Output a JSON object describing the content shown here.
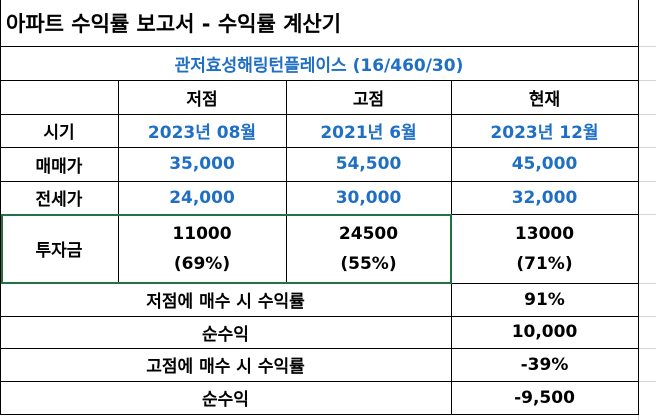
{
  "title": "아파트 수익률 보고서 - 수익률 계산기",
  "property": "관저효성해링턴플레이스 (16/460/30)",
  "headers": {
    "low": "저점",
    "high": "고점",
    "current": "현재"
  },
  "rows": {
    "period": {
      "label": "시기",
      "low": "2023년 08월",
      "high": "2021년 6월",
      "current": "2023년 12월"
    },
    "sale": {
      "label": "매매가",
      "low": "35,000",
      "high": "54,500",
      "current": "45,000"
    },
    "jeonse": {
      "label": "전세가",
      "low": "24,000",
      "high": "30,000",
      "current": "32,000"
    },
    "invest": {
      "label": "투자금",
      "low": "11000",
      "low_pct": "(69%)",
      "high": "24500",
      "high_pct": "(55%)",
      "current": "13000",
      "current_pct": "(71%)"
    }
  },
  "summary": {
    "low_buy_return_label": "저점에 매수 시 수익률",
    "low_buy_return_value": "91%",
    "low_net_label": "순수익",
    "low_net_value": "10,000",
    "high_buy_return_label": "고점에 매수 시 수익률",
    "high_buy_return_value": "-39%",
    "high_net_label": "순수익",
    "high_net_value": "-9,500"
  },
  "colors": {
    "blue_text": "#1f6fc5",
    "selection": "#217346"
  }
}
